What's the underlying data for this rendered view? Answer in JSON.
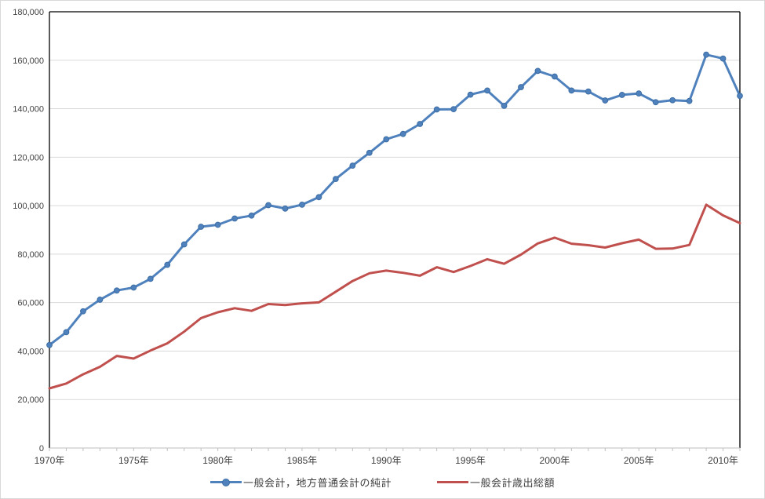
{
  "chart_data": {
    "type": "line",
    "title": "",
    "xlabel": "",
    "ylabel": "",
    "grid": "horizontal",
    "legend_position": "bottom",
    "xlim": [
      1970,
      2011
    ],
    "ylim": [
      0,
      180000
    ],
    "years": [
      1970,
      1971,
      1972,
      1973,
      1974,
      1975,
      1976,
      1977,
      1978,
      1979,
      1980,
      1981,
      1982,
      1983,
      1984,
      1985,
      1986,
      1987,
      1988,
      1989,
      1990,
      1991,
      1992,
      1993,
      1994,
      1995,
      1996,
      1997,
      1998,
      1999,
      2000,
      2001,
      2002,
      2003,
      2004,
      2005,
      2006,
      2007,
      2008,
      2009,
      2010,
      2011
    ],
    "x_tick_years": [
      1970,
      1975,
      1980,
      1985,
      1990,
      1995,
      2000,
      2005,
      2010
    ],
    "x_tick_labels": [
      "1970年",
      "1975年",
      "1980年",
      "1985年",
      "1990年",
      "1995年",
      "2000年",
      "2005年",
      "2010年"
    ],
    "y_ticks": [
      0,
      20000,
      40000,
      60000,
      80000,
      100000,
      120000,
      140000,
      160000,
      180000
    ],
    "y_tick_labels": [
      "0",
      "20,000",
      "40,000",
      "60,000",
      "80,000",
      "100,000",
      "120,000",
      "140,000",
      "160,000",
      "180,000"
    ],
    "series": [
      {
        "name": "一般会計，地方普通会計の純計",
        "color": "#4F81BD",
        "marker": "circle",
        "values": [
          42500,
          47800,
          56400,
          61200,
          65000,
          66200,
          69800,
          75600,
          84000,
          91300,
          92100,
          94700,
          95900,
          100200,
          98800,
          100400,
          103500,
          111000,
          116500,
          121800,
          127400,
          129600,
          133700,
          139700,
          139800,
          145800,
          147500,
          141200,
          148900,
          155600,
          153300,
          147500,
          147100,
          143400,
          145700,
          146300,
          142700,
          143500,
          143200,
          162300,
          160700,
          145300
        ]
      },
      {
        "name": "一般会計歳出総額",
        "color": "#C0504D",
        "marker": "none",
        "values": [
          24600,
          26600,
          30400,
          33500,
          38000,
          36900,
          40200,
          43200,
          48000,
          53600,
          56000,
          57700,
          56600,
          59400,
          59000,
          59700,
          60100,
          64500,
          68900,
          72100,
          73200,
          72300,
          71100,
          74600,
          72600,
          75100,
          77900,
          76000,
          79800,
          84400,
          86800,
          84300,
          83700,
          82700,
          84500,
          86000,
          82200,
          82300,
          83800,
          100400,
          96000,
          92800
        ]
      }
    ],
    "colors": {
      "gridline": "#D9D9D9",
      "plot_border": "#000000",
      "axis_line": "#BFBFBF",
      "tick": "#BFBFBF",
      "text": "#404040",
      "background": "#FFFFFF"
    }
  }
}
